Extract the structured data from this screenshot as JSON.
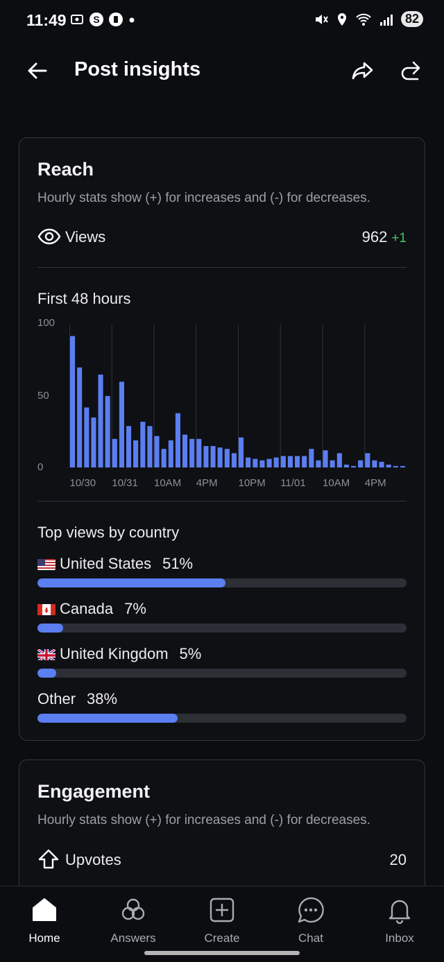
{
  "status_bar": {
    "time": "11:49",
    "battery": "82"
  },
  "header": {
    "title": "Post insights"
  },
  "reach": {
    "title": "Reach",
    "subtitle": "Hourly stats show (+) for increases and (-) for decreases.",
    "views_label": "Views",
    "views_value": "962",
    "views_delta": "+1",
    "chart_title": "First 48 hours"
  },
  "chart_data": {
    "type": "bar",
    "title": "First 48 hours",
    "ylim": [
      0,
      100
    ],
    "y_ticks": [
      "100",
      "50",
      "0"
    ],
    "x_tick_labels": [
      "10/30",
      "10/31",
      "10AM",
      "4PM",
      "10PM",
      "11/01",
      "10AM",
      "4PM"
    ],
    "values": [
      92,
      70,
      42,
      35,
      65,
      50,
      20,
      60,
      29,
      19,
      32,
      29,
      22,
      13,
      19,
      38,
      23,
      20,
      20,
      15,
      15,
      14,
      13,
      10,
      21,
      7,
      6,
      5,
      6,
      7,
      8,
      8,
      8,
      8,
      13,
      5,
      12,
      5,
      10,
      2,
      1,
      5,
      10,
      5,
      4,
      2,
      1,
      1
    ],
    "color": "#5b7ef0",
    "grid": true
  },
  "countries": {
    "title": "Top views by country",
    "items": [
      {
        "name": "United States",
        "pct": "51%",
        "value": 51,
        "flag": "us"
      },
      {
        "name": "Canada",
        "pct": "7%",
        "value": 7,
        "flag": "ca"
      },
      {
        "name": "United Kingdom",
        "pct": "5%",
        "value": 5,
        "flag": "uk"
      },
      {
        "name": "Other",
        "pct": "38%",
        "value": 38,
        "flag": ""
      }
    ]
  },
  "engagement": {
    "title": "Engagement",
    "subtitle": "Hourly stats show (+) for increases and (-) for decreases.",
    "upvotes_label": "Upvotes",
    "upvotes_value": "20"
  },
  "nav": {
    "items": [
      {
        "label": "Home",
        "icon": "home-icon"
      },
      {
        "label": "Answers",
        "icon": "answers-icon"
      },
      {
        "label": "Create",
        "icon": "create-icon"
      },
      {
        "label": "Chat",
        "icon": "chat-icon"
      },
      {
        "label": "Inbox",
        "icon": "bell-icon"
      }
    ]
  },
  "colors": {
    "accent": "#5b7ef0",
    "positive": "#45c65a",
    "background": "#0b0d10"
  }
}
